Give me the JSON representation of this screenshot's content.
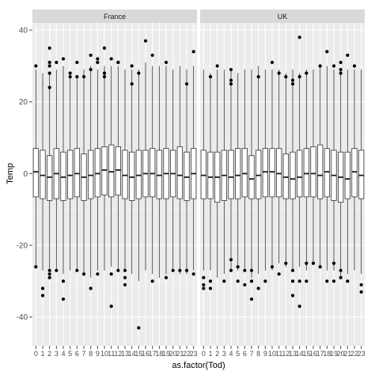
{
  "chart_data": {
    "type": "boxplot",
    "xlabel": "as.factor(Tod)",
    "ylabel": "Temp",
    "ylim": [
      -48,
      42
    ],
    "y_ticks": [
      -40,
      -20,
      0,
      20,
      40
    ],
    "grid": true,
    "categories": [
      "0",
      "1",
      "2",
      "3",
      "4",
      "5",
      "6",
      "7",
      "8",
      "9",
      "10",
      "11",
      "12",
      "13",
      "14",
      "15",
      "16",
      "17",
      "18",
      "19",
      "20",
      "21",
      "22",
      "23"
    ],
    "panels": [
      {
        "name": "France",
        "boxes": [
          {
            "q1": -6.5,
            "median": 0.5,
            "q3": 7,
            "low": -26,
            "high": 29
          },
          {
            "q1": -7,
            "median": -0.5,
            "q3": 6.5,
            "low": -27,
            "high": 28
          },
          {
            "q1": -7.5,
            "median": -1,
            "q3": 5,
            "low": -26.5,
            "high": 28
          },
          {
            "q1": -7,
            "median": 0,
            "q3": 7,
            "low": -27,
            "high": 29
          },
          {
            "q1": -7.5,
            "median": -1,
            "q3": 6,
            "low": -28,
            "high": 30
          },
          {
            "q1": -7,
            "median": -0.5,
            "q3": 6.5,
            "low": -27,
            "high": 27
          },
          {
            "q1": -6.5,
            "median": 0,
            "q3": 7,
            "low": -27,
            "high": 27
          },
          {
            "q1": -7.5,
            "median": -1,
            "q3": 5.5,
            "low": -28,
            "high": 29
          },
          {
            "q1": -7,
            "median": -0.5,
            "q3": 6.5,
            "low": -29,
            "high": 30
          },
          {
            "q1": -6.5,
            "median": 0,
            "q3": 7,
            "low": -27,
            "high": 29
          },
          {
            "q1": -6,
            "median": 1,
            "q3": 7.5,
            "low": -27,
            "high": 30
          },
          {
            "q1": -6.5,
            "median": 0.5,
            "q3": 8,
            "low": -26,
            "high": 30
          },
          {
            "q1": -6,
            "median": 1,
            "q3": 7.5,
            "low": -27,
            "high": 30
          },
          {
            "q1": -7,
            "median": -0.5,
            "q3": 6.5,
            "low": -27,
            "high": 29
          },
          {
            "q1": -7.5,
            "median": -1,
            "q3": 6,
            "low": -28,
            "high": 29
          },
          {
            "q1": -7,
            "median": -0.5,
            "q3": 6.5,
            "low": -30,
            "high": 29
          },
          {
            "q1": -6.5,
            "median": 0,
            "q3": 6.5,
            "low": -27,
            "high": 31
          },
          {
            "q1": -6.5,
            "median": 0,
            "q3": 7,
            "low": -28,
            "high": 30
          },
          {
            "q1": -7,
            "median": -0.5,
            "q3": 6.5,
            "low": -29,
            "high": 30
          },
          {
            "q1": -7,
            "median": 0,
            "q3": 7,
            "low": -28,
            "high": 30
          },
          {
            "q1": -6.5,
            "median": 0,
            "q3": 6.5,
            "low": -27,
            "high": 29
          },
          {
            "q1": -7,
            "median": -0.5,
            "q3": 7.5,
            "low": -28,
            "high": 30
          },
          {
            "q1": -7.5,
            "median": -1,
            "q3": 6,
            "low": -28,
            "high": 29
          },
          {
            "q1": -7,
            "median": 0,
            "q3": 7,
            "low": -27,
            "high": 30
          }
        ],
        "outliers": [
          {
            "x": "0",
            "y": 30
          },
          {
            "x": "0",
            "y": -26
          },
          {
            "x": "1",
            "y": -32
          },
          {
            "x": "1",
            "y": -34
          },
          {
            "x": "2",
            "y": 35
          },
          {
            "x": "2",
            "y": 31
          },
          {
            "x": "2",
            "y": 30
          },
          {
            "x": "2",
            "y": 28
          },
          {
            "x": "2",
            "y": 24
          },
          {
            "x": "2",
            "y": -27
          },
          {
            "x": "2",
            "y": -28
          },
          {
            "x": "2",
            "y": -29
          },
          {
            "x": "3",
            "y": 31
          },
          {
            "x": "3",
            "y": -27
          },
          {
            "x": "4",
            "y": 32
          },
          {
            "x": "4",
            "y": -30
          },
          {
            "x": "4",
            "y": -35
          },
          {
            "x": "5",
            "y": 28
          },
          {
            "x": "5",
            "y": 27
          },
          {
            "x": "6",
            "y": 31
          },
          {
            "x": "6",
            "y": 27
          },
          {
            "x": "6",
            "y": -27
          },
          {
            "x": "7",
            "y": 27
          },
          {
            "x": "7",
            "y": -28
          },
          {
            "x": "8",
            "y": 33
          },
          {
            "x": "8",
            "y": 29
          },
          {
            "x": "8",
            "y": -32
          },
          {
            "x": "9",
            "y": 32
          },
          {
            "x": "9",
            "y": 31
          },
          {
            "x": "9",
            "y": -28
          },
          {
            "x": "10",
            "y": 35
          },
          {
            "x": "10",
            "y": 28
          },
          {
            "x": "10",
            "y": 27
          },
          {
            "x": "11",
            "y": 32
          },
          {
            "x": "11",
            "y": -28
          },
          {
            "x": "11",
            "y": -37
          },
          {
            "x": "12",
            "y": 31
          },
          {
            "x": "12",
            "y": 31
          },
          {
            "x": "12",
            "y": -27
          },
          {
            "x": "13",
            "y": -27
          },
          {
            "x": "13",
            "y": -29
          },
          {
            "x": "13",
            "y": -31
          },
          {
            "x": "14",
            "y": 30
          },
          {
            "x": "14",
            "y": 25
          },
          {
            "x": "15",
            "y": 28
          },
          {
            "x": "15",
            "y": -43
          },
          {
            "x": "16",
            "y": 37
          },
          {
            "x": "17",
            "y": 33
          },
          {
            "x": "17",
            "y": -30
          },
          {
            "x": "19",
            "y": 31
          },
          {
            "x": "19",
            "y": -29
          },
          {
            "x": "20",
            "y": -27
          },
          {
            "x": "21",
            "y": -27
          },
          {
            "x": "22",
            "y": 25
          },
          {
            "x": "22",
            "y": -27
          },
          {
            "x": "23",
            "y": 34
          },
          {
            "x": "23",
            "y": -28
          }
        ]
      },
      {
        "name": "UK",
        "boxes": [
          {
            "q1": -7,
            "median": -0.5,
            "q3": 6.5,
            "low": -27,
            "high": 29
          },
          {
            "q1": -7,
            "median": -1,
            "q3": 6,
            "low": -27,
            "high": 28
          },
          {
            "q1": -8,
            "median": -1,
            "q3": 6,
            "low": -29,
            "high": 29
          },
          {
            "q1": -7.5,
            "median": -0.5,
            "q3": 6.5,
            "low": -28,
            "high": 29
          },
          {
            "q1": -7,
            "median": -1,
            "q3": 6.5,
            "low": -27,
            "high": 29
          },
          {
            "q1": -7,
            "median": -0.5,
            "q3": 7,
            "low": -27,
            "high": 28
          },
          {
            "q1": -6.5,
            "median": 0,
            "q3": 7,
            "low": -27,
            "high": 29
          },
          {
            "q1": -7,
            "median": -1.5,
            "q3": 5,
            "low": -29,
            "high": 29
          },
          {
            "q1": -7,
            "median": -0.5,
            "q3": 6.5,
            "low": -28,
            "high": 30
          },
          {
            "q1": -6.5,
            "median": 0.5,
            "q3": 7,
            "low": -27,
            "high": 29
          },
          {
            "q1": -6.5,
            "median": 0.5,
            "q3": 7,
            "low": -27,
            "high": 29
          },
          {
            "q1": -6.5,
            "median": 0,
            "q3": 7,
            "low": -25,
            "high": 29
          },
          {
            "q1": -7,
            "median": -1,
            "q3": 5.5,
            "low": -26,
            "high": 28
          },
          {
            "q1": -7,
            "median": -1.5,
            "q3": 6,
            "low": -27,
            "high": 29
          },
          {
            "q1": -6.5,
            "median": -1,
            "q3": 6.5,
            "low": -26,
            "high": 28
          },
          {
            "q1": -6.5,
            "median": 0,
            "q3": 7,
            "low": -27,
            "high": 29
          },
          {
            "q1": -6.5,
            "median": 0,
            "q3": 7.5,
            "low": -25,
            "high": 29
          },
          {
            "q1": -7,
            "median": -0.5,
            "q3": 8,
            "low": -26,
            "high": 30
          },
          {
            "q1": -6.5,
            "median": 0.5,
            "q3": 7,
            "low": -27,
            "high": 30
          },
          {
            "q1": -7.5,
            "median": -0.5,
            "q3": 6.5,
            "low": -27,
            "high": 29
          },
          {
            "q1": -8,
            "median": -1,
            "q3": 6,
            "low": -29,
            "high": 29
          },
          {
            "q1": -7,
            "median": -1.5,
            "q3": 6,
            "low": -28,
            "high": 29
          },
          {
            "q1": -6.5,
            "median": 0.5,
            "q3": 7,
            "low": -27,
            "high": 29
          },
          {
            "q1": -7,
            "median": -0.5,
            "q3": 6.5,
            "low": -28,
            "high": 29
          }
        ],
        "outliers": [
          {
            "x": "0",
            "y": -29
          },
          {
            "x": "0",
            "y": -31
          },
          {
            "x": "0",
            "y": -32
          },
          {
            "x": "1",
            "y": 27
          },
          {
            "x": "1",
            "y": -30
          },
          {
            "x": "1",
            "y": -32
          },
          {
            "x": "2",
            "y": 30
          },
          {
            "x": "3",
            "y": -30
          },
          {
            "x": "4",
            "y": 29
          },
          {
            "x": "4",
            "y": 26
          },
          {
            "x": "4",
            "y": 25
          },
          {
            "x": "4",
            "y": -24
          },
          {
            "x": "4",
            "y": -27
          },
          {
            "x": "5",
            "y": -26
          },
          {
            "x": "5",
            "y": -30
          },
          {
            "x": "6",
            "y": -27
          },
          {
            "x": "6",
            "y": -31
          },
          {
            "x": "7",
            "y": -27
          },
          {
            "x": "7",
            "y": -30
          },
          {
            "x": "7",
            "y": -35
          },
          {
            "x": "8",
            "y": 27
          },
          {
            "x": "8",
            "y": -32
          },
          {
            "x": "9",
            "y": -30
          },
          {
            "x": "10",
            "y": 31
          },
          {
            "x": "10",
            "y": -26
          },
          {
            "x": "11",
            "y": 28
          },
          {
            "x": "11",
            "y": -28
          },
          {
            "x": "12",
            "y": 27
          },
          {
            "x": "12",
            "y": -25
          },
          {
            "x": "13",
            "y": 26
          },
          {
            "x": "13",
            "y": 25
          },
          {
            "x": "13",
            "y": -27
          },
          {
            "x": "13",
            "y": -30
          },
          {
            "x": "13",
            "y": -34
          },
          {
            "x": "14",
            "y": 38
          },
          {
            "x": "14",
            "y": 27
          },
          {
            "x": "14",
            "y": -30
          },
          {
            "x": "14",
            "y": -37
          },
          {
            "x": "15",
            "y": 28
          },
          {
            "x": "15",
            "y": -25
          },
          {
            "x": "15",
            "y": -30
          },
          {
            "x": "16",
            "y": -25
          },
          {
            "x": "17",
            "y": 30
          },
          {
            "x": "17",
            "y": -26
          },
          {
            "x": "18",
            "y": 34
          },
          {
            "x": "18",
            "y": -30
          },
          {
            "x": "19",
            "y": 30
          },
          {
            "x": "19",
            "y": -25
          },
          {
            "x": "19",
            "y": -30
          },
          {
            "x": "20",
            "y": 31
          },
          {
            "x": "20",
            "y": 29
          },
          {
            "x": "20",
            "y": 28
          },
          {
            "x": "20",
            "y": -27
          },
          {
            "x": "20",
            "y": -29
          },
          {
            "x": "21",
            "y": 33
          },
          {
            "x": "21",
            "y": -30
          },
          {
            "x": "22",
            "y": 30
          },
          {
            "x": "23",
            "y": -31
          },
          {
            "x": "23",
            "y": -33
          }
        ]
      }
    ]
  }
}
